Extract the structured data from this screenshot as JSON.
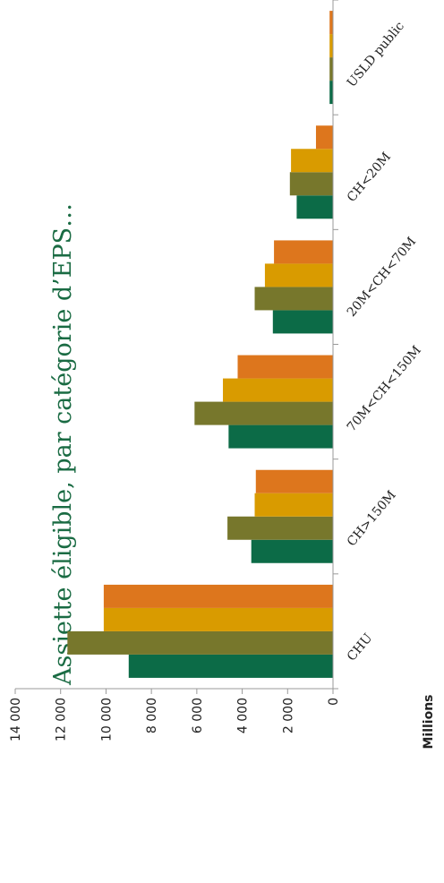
{
  "colors": {
    "series": [
      "#0c6b47",
      "#77772c",
      "#d99b00",
      "#dd761d"
    ],
    "title": "#1a6b43",
    "axis": "#999999"
  },
  "chart_data": {
    "type": "bar",
    "title": "Assiette éligible, par catégorie d’EPS…",
    "ylabel": "Millions",
    "ylim": [
      0,
      14000
    ],
    "yticks": [
      0,
      2000,
      4000,
      6000,
      8000,
      10000,
      12000,
      14000
    ],
    "ytick_labels": [
      "0",
      "2 000",
      "4 000",
      "6 000",
      "8 000",
      "10 000",
      "12 000",
      "14 000"
    ],
    "categories": [
      "CHU",
      "CH>150M",
      "70M<CH<150M",
      "20M<CH<70M",
      "CH<20M",
      "USLD public"
    ],
    "series": [
      {
        "values": [
          9000,
          3600,
          4600,
          2650,
          1600,
          150
        ]
      },
      {
        "values": [
          11700,
          4650,
          6100,
          3450,
          1900,
          150
        ]
      },
      {
        "values": [
          10100,
          3450,
          4850,
          3000,
          1850,
          150
        ]
      },
      {
        "values": [
          10100,
          3400,
          4200,
          2600,
          750,
          150
        ]
      }
    ],
    "legend": "none",
    "grid": false
  }
}
